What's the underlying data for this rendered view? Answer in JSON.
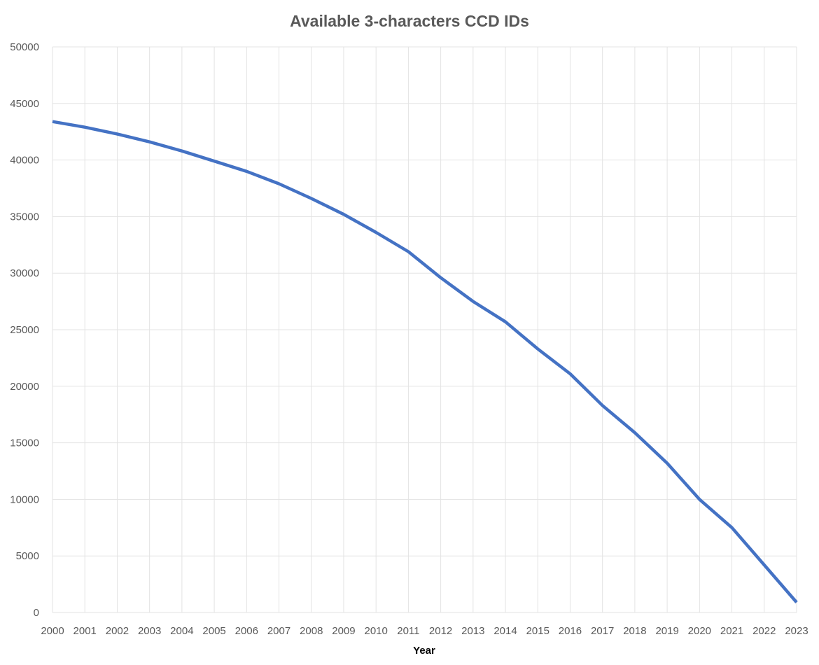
{
  "chart_data": {
    "type": "line",
    "title": "Available 3-characters CCD IDs",
    "xlabel": "Year",
    "ylabel": "",
    "x": [
      2000,
      2001,
      2002,
      2003,
      2004,
      2005,
      2006,
      2007,
      2008,
      2009,
      2010,
      2011,
      2012,
      2013,
      2014,
      2015,
      2016,
      2017,
      2018,
      2019,
      2020,
      2021,
      2022,
      2023
    ],
    "series": [
      {
        "values": [
          43400,
          42900,
          42300,
          41600,
          40800,
          39900,
          39000,
          37900,
          36600,
          35200,
          33600,
          31900,
          29600,
          27500,
          25700,
          23300,
          21100,
          18300,
          15900,
          13200,
          10000,
          7500,
          4200,
          900
        ],
        "color": "#4472C4"
      }
    ],
    "ylim": [
      0,
      50000
    ],
    "yticks": [
      0,
      5000,
      10000,
      15000,
      20000,
      25000,
      30000,
      35000,
      40000,
      45000,
      50000
    ],
    "grid": true,
    "legend": "none"
  }
}
